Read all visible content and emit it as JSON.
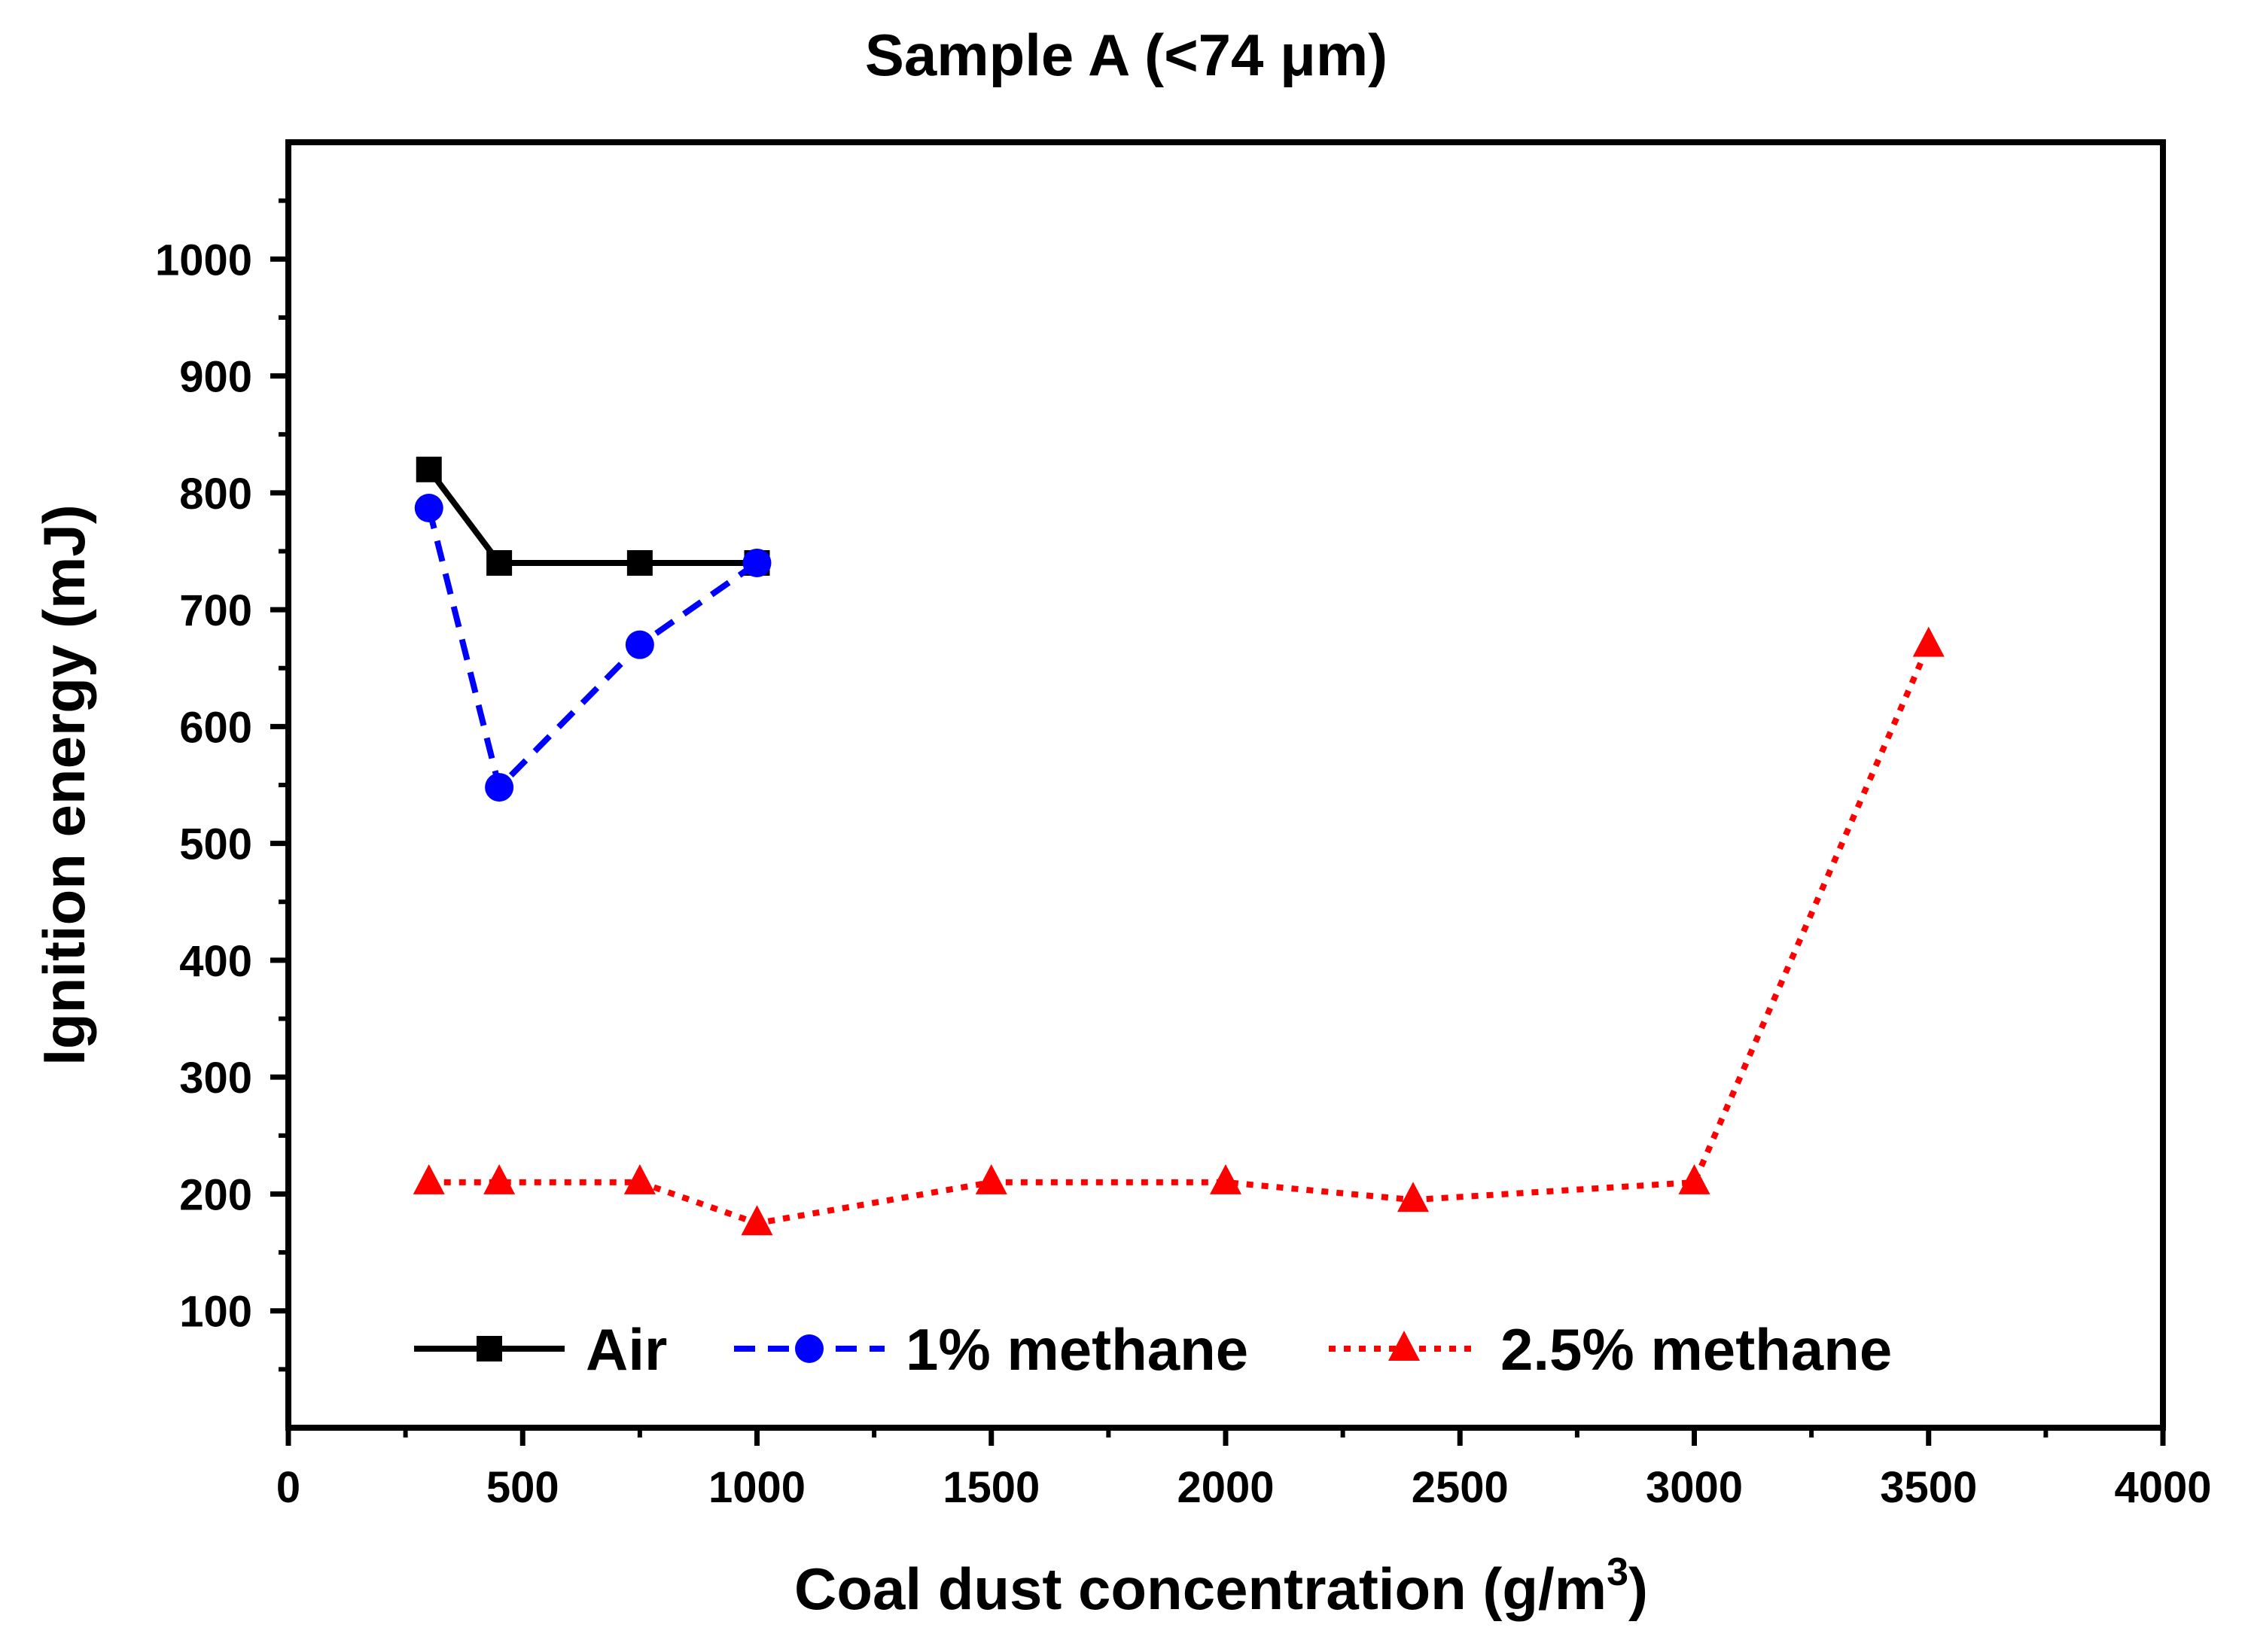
{
  "chart_data": {
    "type": "line",
    "title": "Sample A (<74 μm)",
    "xlabel": "Coal dust concentration (g/m",
    "xlabel_sup": "3",
    "xlabel_end": ")",
    "ylabel": "Ignition energy (mJ)",
    "xlim": [
      0,
      4000
    ],
    "ylim": [
      0,
      1100
    ],
    "x_ticks": [
      0,
      500,
      1000,
      1500,
      2000,
      2500,
      3000,
      3500,
      4000
    ],
    "y_ticks": [
      100,
      200,
      300,
      400,
      500,
      600,
      700,
      800,
      900,
      1000
    ],
    "grid": false,
    "legend_position": "bottom",
    "series": [
      {
        "name": "Air",
        "color": "#000000",
        "marker": "square",
        "line_style": "solid",
        "x": [
          300,
          450,
          750,
          1000
        ],
        "y": [
          820,
          740,
          740,
          740
        ]
      },
      {
        "name": "1% methane",
        "color": "#0000ff",
        "marker": "circle",
        "line_style": "dashed",
        "x": [
          300,
          450,
          750,
          1000
        ],
        "y": [
          787,
          548,
          670,
          740
        ]
      },
      {
        "name": "2.5% methane",
        "color": "#ff0000",
        "marker": "triangle",
        "line_style": "dotted",
        "x": [
          300,
          450,
          750,
          1000,
          1500,
          2000,
          2400,
          3000,
          3500
        ],
        "y": [
          210,
          210,
          210,
          175,
          210,
          210,
          195,
          210,
          670
        ]
      }
    ]
  }
}
